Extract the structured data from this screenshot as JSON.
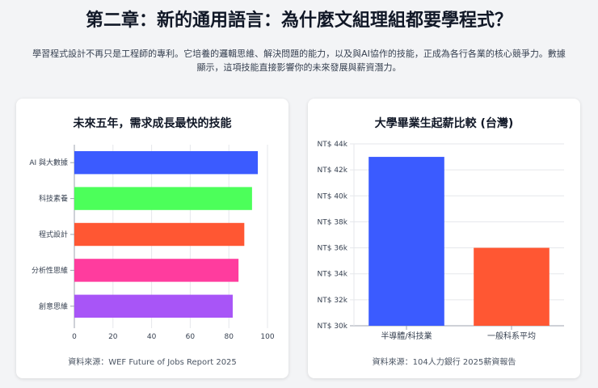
{
  "page": {
    "title": "第二章：新的通用語言：為什麼文組理組都要學程式？",
    "intro": "學習程式設計不再只是工程師的專利。它培養的邏輯思維、解決問題的能力，以及與AI協作的技能，正成為各行各業的核心競爭力。數據顯示，這項技能直接影響你的未來發展與薪資潛力。"
  },
  "left_card": {
    "source": "資料來源：WEF Future of Jobs Report 2025"
  },
  "right_card": {
    "source": "資料來源：104人力銀行 2025薪資報告"
  },
  "chart_data": [
    {
      "type": "bar",
      "orientation": "horizontal",
      "title": "未來五年，需求成長最快的技能",
      "categories": [
        "AI 與大數據",
        "科技素養",
        "程式設計",
        "分析性思維",
        "創意思維"
      ],
      "values": [
        95,
        92,
        88,
        85,
        82
      ],
      "colors": [
        "#3b5bff",
        "#4cff5a",
        "#ff5733",
        "#ff3c9e",
        "#a855f7"
      ],
      "xlim": [
        0,
        100
      ],
      "xticks": [
        0,
        20,
        40,
        60,
        80,
        100
      ],
      "xlabel": "",
      "ylabel": "",
      "grid": true
    },
    {
      "type": "bar",
      "orientation": "vertical",
      "title": "大學畢業生起薪比較 (台灣)",
      "categories": [
        "半導體/科技業",
        "一般科系平均"
      ],
      "values": [
        43000,
        36000
      ],
      "colors": [
        "#3b5bff",
        "#ff5733"
      ],
      "ylim": [
        30000,
        44000
      ],
      "yticks": [
        "NT$ 30k",
        "NT$ 32k",
        "NT$ 34k",
        "NT$ 36k",
        "NT$ 38k",
        "NT$ 40k",
        "NT$ 42k",
        "NT$ 44k"
      ],
      "xlabel": "",
      "ylabel": "",
      "grid": true
    }
  ]
}
